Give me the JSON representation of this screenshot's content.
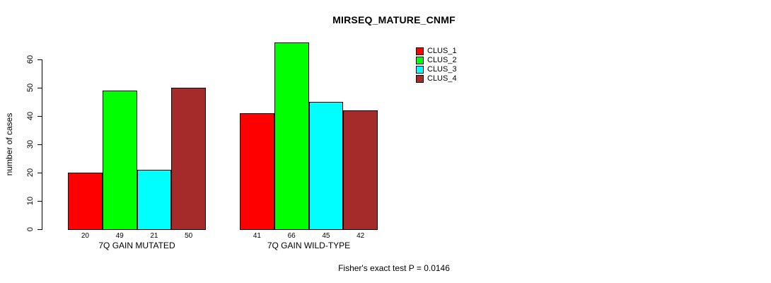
{
  "header": {
    "title": "MIRSEQ_MATURE_CNMF"
  },
  "footer": {
    "annotation": "Fisher's exact test P = 0.0146"
  },
  "chart_data": {
    "type": "bar",
    "title": "MIRSEQ_MATURE_CNMF",
    "xlabel": "",
    "ylabel": "number of cases",
    "categories": [
      "7Q GAIN MUTATED",
      "7Q GAIN WILD-TYPE"
    ],
    "series": [
      {
        "name": "CLUS_1",
        "color": "#ff0000",
        "values": [
          20,
          41
        ]
      },
      {
        "name": "CLUS_2",
        "color": "#00ff00",
        "values": [
          49,
          66
        ]
      },
      {
        "name": "CLUS_3",
        "color": "#00ffff",
        "values": [
          21,
          45
        ]
      },
      {
        "name": "CLUS_4",
        "color": "#a52a2a",
        "values": [
          50,
          42
        ]
      }
    ],
    "bar_value_labels": [
      [
        "20",
        "49",
        "21",
        "50"
      ],
      [
        "41",
        "66",
        "45",
        "42"
      ]
    ],
    "yticks": [
      0,
      10,
      20,
      30,
      40,
      50,
      60
    ],
    "ylim": [
      0,
      66
    ],
    "grid": false,
    "legend_position": "top-right",
    "legend_entries": [
      "CLUS_1",
      "CLUS_2",
      "CLUS_3",
      "CLUS_4"
    ],
    "annotation": "Fisher's exact test P = 0.0146",
    "bar_outline_color": "#000000",
    "background_color": "#ffffff"
  }
}
